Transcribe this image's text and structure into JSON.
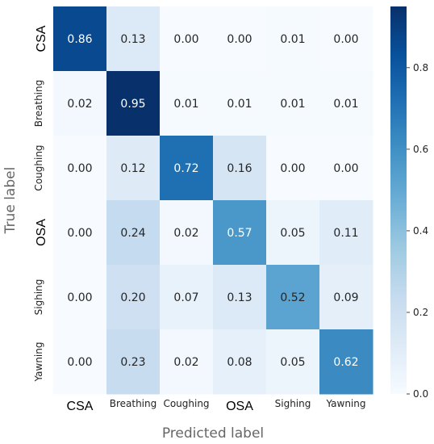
{
  "chart_data": {
    "type": "heatmap",
    "xlabel": "Predicted label",
    "ylabel": "True label",
    "x_categories": [
      "CSA",
      "Breathing",
      "Coughing",
      "OSA",
      "Sighing",
      "Yawning"
    ],
    "y_categories": [
      "CSA",
      "Breathing",
      "Coughing",
      "OSA",
      "Sighing",
      "Yawning"
    ],
    "large_tick_labels": [
      "CSA",
      "OSA"
    ],
    "values": [
      [
        0.86,
        0.13,
        0.0,
        0.0,
        0.01,
        0.0
      ],
      [
        0.02,
        0.95,
        0.01,
        0.01,
        0.01,
        0.01
      ],
      [
        0.0,
        0.12,
        0.72,
        0.16,
        0.0,
        0.0
      ],
      [
        0.0,
        0.24,
        0.02,
        0.57,
        0.05,
        0.11
      ],
      [
        0.0,
        0.2,
        0.07,
        0.13,
        0.52,
        0.09
      ],
      [
        0.0,
        0.23,
        0.02,
        0.08,
        0.05,
        0.62
      ]
    ],
    "colorbar": {
      "range": [
        0.0,
        0.95
      ],
      "ticks": [
        0.0,
        0.2,
        0.4,
        0.6,
        0.8
      ],
      "tick_labels": [
        "0.0",
        "0.2",
        "0.4",
        "0.6",
        "0.8"
      ]
    },
    "colormap": [
      "#f7fbff",
      "#deebf7",
      "#c6dbef",
      "#9ecae1",
      "#6baed6",
      "#4292c6",
      "#2171b5",
      "#08519c",
      "#08306b"
    ]
  }
}
